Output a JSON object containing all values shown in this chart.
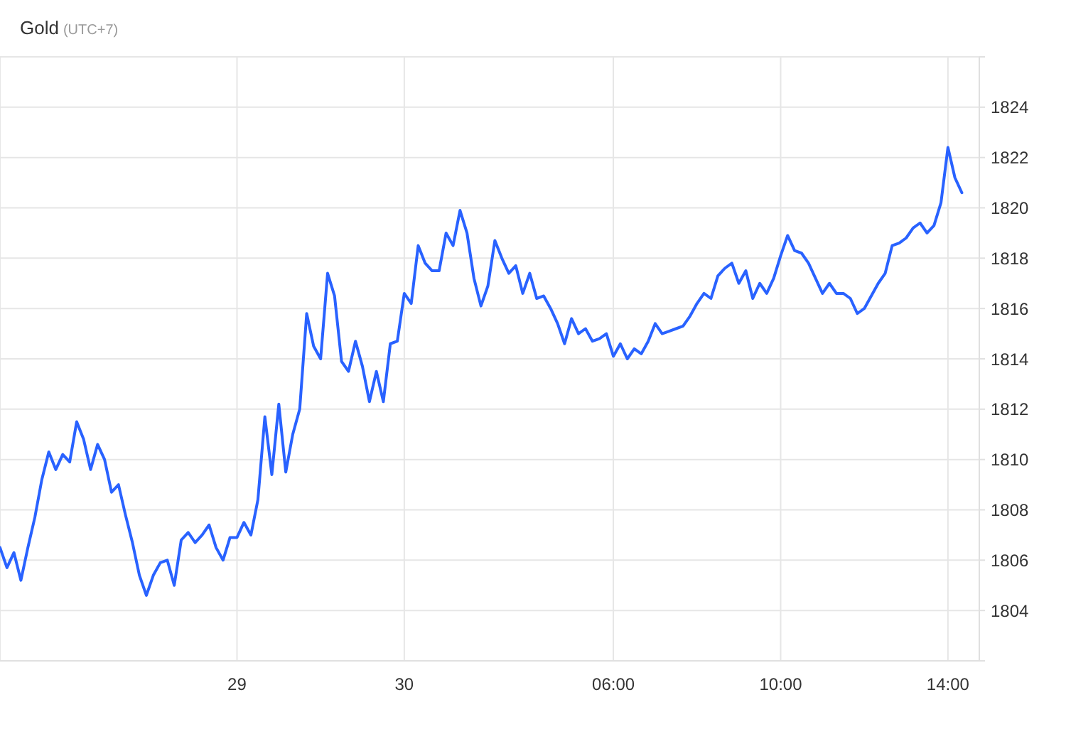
{
  "chart_data": {
    "type": "line",
    "title": "Gold",
    "subtitle": "(UTC+7)",
    "categories": [
      null,
      null,
      null,
      null,
      null,
      null,
      null,
      null,
      null,
      null,
      null,
      null,
      null,
      null,
      null,
      null,
      null,
      null,
      null,
      null,
      null,
      null,
      null,
      null,
      null,
      null,
      null,
      null,
      null,
      null,
      null,
      null,
      null,
      null,
      "29",
      null,
      null,
      null,
      null,
      null,
      null,
      null,
      null,
      null,
      null,
      null,
      null,
      null,
      null,
      null,
      null,
      null,
      null,
      null,
      null,
      null,
      null,
      null,
      "30",
      null,
      null,
      null,
      null,
      null,
      null,
      null,
      null,
      null,
      null,
      null,
      null,
      null,
      null,
      null,
      null,
      null,
      null,
      null,
      null,
      null,
      null,
      null,
      null,
      null,
      null,
      null,
      null,
      null,
      "06:00",
      null,
      null,
      null,
      null,
      null,
      null,
      null,
      null,
      null,
      null,
      null,
      null,
      null,
      null,
      null,
      null,
      null,
      null,
      null,
      null,
      null,
      null,
      null,
      "10:00",
      null,
      null,
      null,
      null,
      null,
      null,
      null,
      null,
      null,
      null,
      null,
      null,
      null,
      null,
      null,
      null,
      null,
      null,
      null,
      null,
      null,
      null,
      null,
      "14:00",
      null,
      null
    ],
    "values": [
      1806.5,
      1805.7,
      1806.3,
      1805.2,
      1806.5,
      1807.7,
      1809.2,
      1810.3,
      1809.6,
      1810.2,
      1809.9,
      1811.5,
      1810.8,
      1809.6,
      1810.6,
      1810.0,
      1808.7,
      1809.0,
      1807.8,
      1806.7,
      1805.4,
      1804.6,
      1805.4,
      1805.9,
      1806.0,
      1805.0,
      1806.8,
      1807.1,
      1806.7,
      1807.0,
      1807.4,
      1806.5,
      1806.0,
      1806.9,
      1806.9,
      1807.5,
      1807.0,
      1808.4,
      1811.7,
      1809.4,
      1812.2,
      1809.5,
      1811.0,
      1812.0,
      1815.8,
      1814.5,
      1814.0,
      1817.4,
      1816.5,
      1813.9,
      1813.5,
      1814.7,
      1813.7,
      1812.3,
      1813.5,
      1812.3,
      1814.6,
      1814.7,
      1816.6,
      1816.2,
      1818.5,
      1817.8,
      1817.5,
      1817.5,
      1819.0,
      1818.5,
      1819.9,
      1819.0,
      1817.2,
      1816.1,
      1816.9,
      1818.7,
      1818.0,
      1817.4,
      1817.7,
      1816.6,
      1817.4,
      1816.4,
      1816.5,
      1816.0,
      1815.4,
      1814.6,
      1815.6,
      1815.0,
      1815.2,
      1814.7,
      1814.8,
      1815.0,
      1814.1,
      1814.6,
      1814.0,
      1814.4,
      1814.2,
      1814.7,
      1815.4,
      1815.0,
      1815.1,
      1815.2,
      1815.3,
      1815.7,
      1816.2,
      1816.6,
      1816.4,
      1817.3,
      1817.6,
      1817.8,
      1817.0,
      1817.5,
      1816.4,
      1817.0,
      1816.6,
      1817.2,
      1818.1,
      1818.9,
      1818.3,
      1818.2,
      1817.8,
      1817.2,
      1816.6,
      1817.0,
      1816.6,
      1816.6,
      1816.4,
      1815.8,
      1816.0,
      1816.5,
      1817.0,
      1817.4,
      1818.5,
      1818.6,
      1818.8,
      1819.2,
      1819.4,
      1819.0,
      1819.3,
      1820.2,
      1822.4,
      1821.2,
      1820.6
    ],
    "color": "#2962ff",
    "ylim": [
      1802,
      1826
    ],
    "yticks": [
      {
        "value": 1802,
        "label": null
      },
      1804,
      1806,
      1808,
      1810,
      1812,
      1814,
      1816,
      1818,
      1820,
      1822,
      1824,
      {
        "value": 1826,
        "label": null
      }
    ],
    "grid": true
  }
}
